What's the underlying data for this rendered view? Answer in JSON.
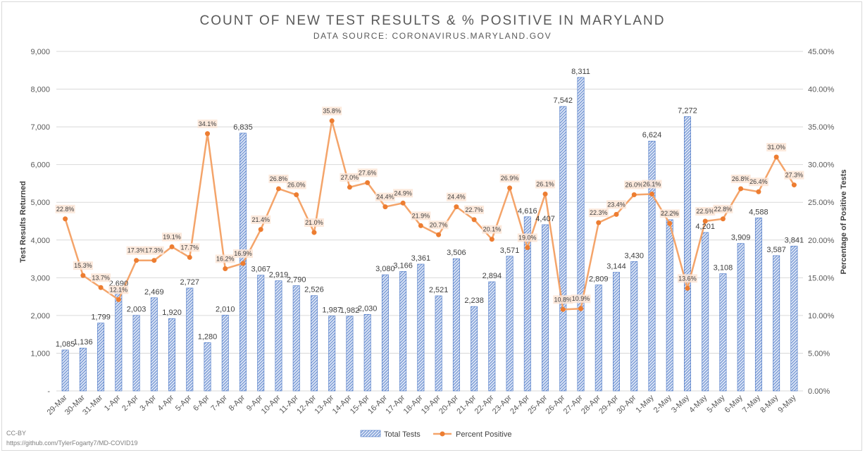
{
  "chart_data": {
    "type": "bar",
    "title": "COUNT OF NEW TEST RESULTS & % POSITIVE IN MARYLAND",
    "subtitle": "DATA SOURCE: CORONAVIRUS.MARYLAND.GOV",
    "ylabel": "Test Results Returned",
    "y2label": "Percentage of Positive Tests",
    "ylim": [
      0,
      9000
    ],
    "y2lim": [
      0,
      45
    ],
    "yticks": [
      "-",
      "1,000",
      "2,000",
      "3,000",
      "4,000",
      "5,000",
      "6,000",
      "7,000",
      "8,000",
      "9,000"
    ],
    "y2ticks": [
      "0.00%",
      "5.00%",
      "10.00%",
      "15.00%",
      "20.00%",
      "25.00%",
      "30.00%",
      "35.00%",
      "40.00%",
      "45.00%"
    ],
    "categories": [
      "29-Mar",
      "30-Mar",
      "31-Mar",
      "1-Apr",
      "2-Apr",
      "3-Apr",
      "4-Apr",
      "5-Apr",
      "6-Apr",
      "7-Apr",
      "8-Apr",
      "9-Apr",
      "10-Apr",
      "11-Apr",
      "12-Apr",
      "13-Apr",
      "14-Apr",
      "15-Apr",
      "16-Apr",
      "17-Apr",
      "18-Apr",
      "19-Apr",
      "20-Apr",
      "21-Apr",
      "22-Apr",
      "23-Apr",
      "24-Apr",
      "25-Apr",
      "26-Apr",
      "27-Apr",
      "28-Apr",
      "29-Apr",
      "30-Apr",
      "1-May",
      "2-May",
      "3-May",
      "4-May",
      "5-May",
      "6-May",
      "7-May",
      "8-May",
      "9-May"
    ],
    "series": [
      {
        "name": "Total Tests",
        "type": "bar",
        "axis": "left",
        "color": "#4472c4",
        "values": [
          1085,
          1136,
          1799,
          2690,
          2003,
          2469,
          1920,
          2727,
          1280,
          2010,
          6835,
          3067,
          2919,
          2790,
          2526,
          1987,
          1982,
          2030,
          3080,
          3166,
          3361,
          2521,
          3506,
          2238,
          2894,
          3571,
          4616,
          4407,
          7542,
          8311,
          2809,
          3144,
          3430,
          6624,
          4539,
          7272,
          4201,
          3108,
          3909,
          4588,
          3587,
          3841
        ],
        "labels": [
          "1,085",
          "1,136",
          "1,799",
          "2,690",
          "2,003",
          "2,469",
          "1,920",
          "2,727",
          "1,280",
          "2,010",
          "6,835",
          "3,067",
          "2,919",
          "2,790",
          "2,526",
          "1,987",
          "1,982",
          "2,030",
          "3,080",
          "3,166",
          "3,361",
          "2,521",
          "3,506",
          "2,238",
          "2,894",
          "3,571",
          "4,616",
          "4,407",
          "7,542",
          "8,311",
          "2,809",
          "3,144",
          "3,430",
          "6,624",
          "4,539",
          "7,272",
          "4,201",
          "3,108",
          "3,909",
          "4,588",
          "3,587",
          "3,841"
        ]
      },
      {
        "name": "Percent Positive",
        "type": "line",
        "axis": "right",
        "color": "#f4a46a",
        "marker_color": "#ed7d31",
        "values": [
          22.8,
          15.3,
          13.7,
          12.1,
          17.3,
          17.3,
          19.1,
          17.7,
          34.1,
          16.2,
          16.9,
          21.4,
          26.8,
          26.0,
          21.0,
          35.8,
          27.0,
          27.6,
          24.4,
          24.9,
          21.9,
          20.7,
          24.4,
          22.7,
          20.1,
          26.9,
          19.0,
          26.1,
          10.8,
          10.9,
          22.3,
          23.4,
          26.0,
          26.1,
          22.2,
          13.6,
          22.5,
          22.8,
          26.8,
          26.4,
          31.0,
          27.3
        ],
        "labels": [
          "22.8%",
          "15.3%",
          "13.7%",
          "12.1%",
          "17.3%",
          "17.3%",
          "19.1%",
          "17.7%",
          "34.1%",
          "16.2%",
          "16.9%",
          "21.4%",
          "26.8%",
          "26.0%",
          "21.0%",
          "35.8%",
          "27.0%",
          "27.6%",
          "24.4%",
          "24.9%",
          "21.9%",
          "20.7%",
          "24.4%",
          "22.7%",
          "20.1%",
          "26.9%",
          "19.0%",
          "26.1%",
          "10.8%",
          "10.9%",
          "22.3%",
          "23.4%",
          "26.0%",
          "26.1%",
          "22.2%",
          "13.6%",
          "22.5%",
          "22.8%",
          "26.8%",
          "26.4%",
          "31.0%",
          "27.3%"
        ]
      }
    ],
    "legend": [
      "Total Tests",
      "Percent Positive"
    ],
    "legend_position": "bottom",
    "grid": true
  },
  "credit": {
    "license": "CC-BY",
    "url": "https://github.com/TylerFogarty7/MD-COVID19"
  }
}
